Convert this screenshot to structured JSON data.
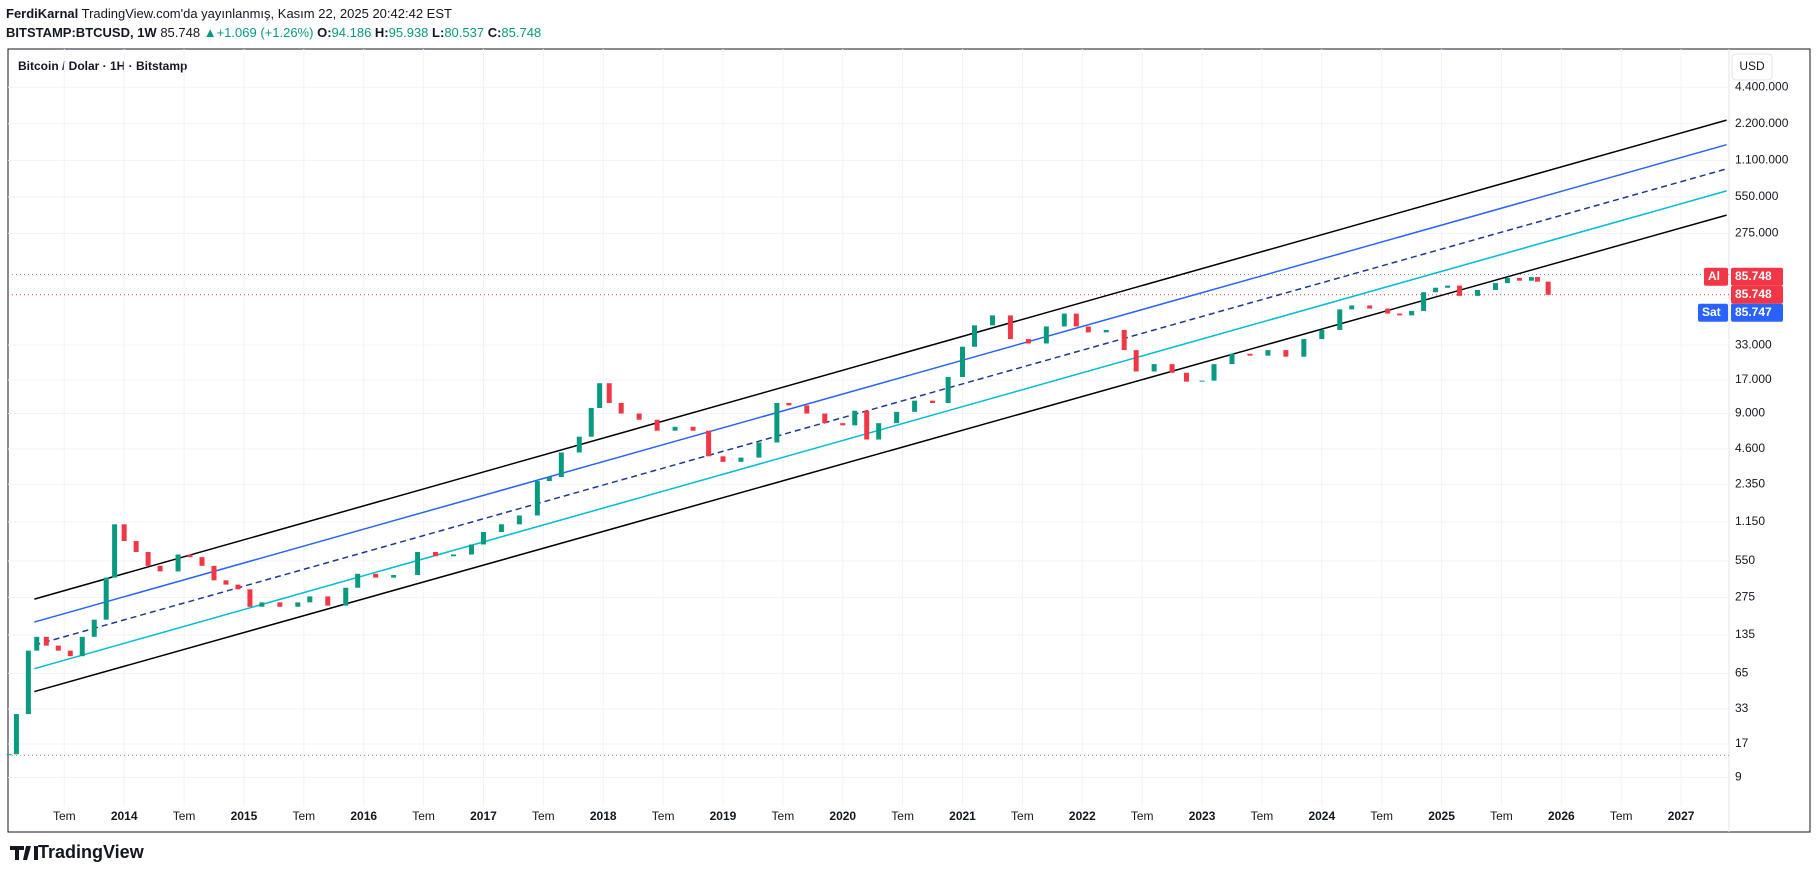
{
  "header": {
    "author": "FerdiKarnal",
    "published": "TradingView.com'da yayınlanmış, Kasım 22, 2025 20:42:42 EST",
    "symbol": "BITSTAMP:BTCUSD, 1W",
    "price": "85.748",
    "arrow": "▲",
    "change": "+1.069 (+1.26%)",
    "o_label": "O:",
    "o": "94.186",
    "h_label": "H:",
    "h": "95.938",
    "l_label": "L:",
    "l": "80.537",
    "c_label": "C:",
    "c": "85.748"
  },
  "footer": {
    "brand": "TradingView"
  },
  "chart_data": {
    "type": "candlestick",
    "title": "Bitcoin / Dolar · 1H · Bitstamp",
    "currency": "USD",
    "log_scale": true,
    "grid": true,
    "up_color": "#089981",
    "down_color": "#f23645",
    "xlim": [
      2013.03,
      2027.4
    ],
    "xticks": [
      {
        "value": 2013.5,
        "label": "Tem"
      },
      2014,
      {
        "value": 2014.5,
        "label": "Tem"
      },
      2015,
      {
        "value": 2015.5,
        "label": "Tem"
      },
      2016,
      {
        "value": 2016.5,
        "label": "Tem"
      },
      2017,
      {
        "value": 2017.5,
        "label": "Tem"
      },
      2018,
      {
        "value": 2018.5,
        "label": "Tem"
      },
      2019,
      {
        "value": 2019.5,
        "label": "Tem"
      },
      2020,
      {
        "value": 2020.5,
        "label": "Tem"
      },
      2021,
      {
        "value": 2021.5,
        "label": "Tem"
      },
      2022,
      {
        "value": 2022.5,
        "label": "Tem"
      },
      2023,
      {
        "value": 2023.5,
        "label": "Tem"
      },
      2024,
      {
        "value": 2024.5,
        "label": "Tem"
      },
      2025,
      {
        "value": 2025.5,
        "label": "Tem"
      },
      2026,
      {
        "value": 2026.5,
        "label": "Tem"
      },
      2027
    ],
    "ylim": [
      3.2,
      9100000
    ],
    "yticks": [
      {
        "value": 4400000,
        "label": "4.400.000"
      },
      {
        "value": 2200000,
        "label": "2.200.000"
      },
      {
        "value": 1100000,
        "label": "1.100.000"
      },
      {
        "value": 550000,
        "label": "550.000"
      },
      {
        "value": 275000,
        "label": "275.000"
      },
      {
        "value": 33000,
        "label": "33.000"
      },
      {
        "value": 17000,
        "label": "17.000"
      },
      {
        "value": 9000,
        "label": "9.000"
      },
      {
        "value": 4600,
        "label": "4.600"
      },
      {
        "value": 2350,
        "label": "2.350"
      },
      {
        "value": 1150,
        "label": "1.150"
      },
      550,
      275,
      135,
      65,
      33,
      17,
      9
    ],
    "x": [
      2013.04,
      2013.1,
      2013.2,
      2013.27,
      2013.35,
      2013.45,
      2013.55,
      2013.65,
      2013.75,
      2013.85,
      2013.92,
      2014.0,
      2014.1,
      2014.2,
      2014.3,
      2014.45,
      2014.55,
      2014.65,
      2014.75,
      2014.85,
      2014.95,
      2015.05,
      2015.15,
      2015.3,
      2015.45,
      2015.55,
      2015.7,
      2015.85,
      2015.95,
      2016.1,
      2016.25,
      2016.45,
      2016.6,
      2016.75,
      2016.9,
      2017.0,
      2017.15,
      2017.3,
      2017.45,
      2017.55,
      2017.65,
      2017.8,
      2017.9,
      2017.97,
      2018.05,
      2018.15,
      2018.3,
      2018.45,
      2018.6,
      2018.75,
      2018.88,
      2019.0,
      2019.15,
      2019.3,
      2019.45,
      2019.55,
      2019.7,
      2019.85,
      2020.0,
      2020.1,
      2020.2,
      2020.3,
      2020.45,
      2020.6,
      2020.75,
      2020.88,
      2021.0,
      2021.1,
      2021.25,
      2021.4,
      2021.55,
      2021.7,
      2021.85,
      2021.95,
      2022.05,
      2022.2,
      2022.35,
      2022.45,
      2022.6,
      2022.75,
      2022.87,
      2023.0,
      2023.1,
      2023.25,
      2023.4,
      2023.55,
      2023.7,
      2023.85,
      2024.0,
      2024.15,
      2024.25,
      2024.4,
      2024.55,
      2024.65,
      2024.75,
      2024.85,
      2024.95,
      2025.05,
      2025.15,
      2025.3,
      2025.45,
      2025.55,
      2025.65,
      2025.75,
      2025.8,
      2025.89
    ],
    "values": [
      14,
      30,
      100,
      130,
      110,
      100,
      90,
      130,
      180,
      400,
      1100,
      800,
      650,
      500,
      450,
      620,
      590,
      500,
      380,
      350,
      320,
      230,
      250,
      230,
      250,
      280,
      235,
      330,
      430,
      400,
      420,
      650,
      600,
      620,
      750,
      950,
      1100,
      1300,
      2500,
      2700,
      4300,
      5800,
      10000,
      16000,
      11000,
      9000,
      8000,
      6500,
      7000,
      6500,
      4000,
      3600,
      3900,
      5200,
      11000,
      10500,
      9000,
      7500,
      7200,
      9500,
      5500,
      7500,
      9300,
      11500,
      11000,
      18000,
      32000,
      48000,
      58000,
      37000,
      34000,
      47000,
      60000,
      47000,
      42000,
      44000,
      30000,
      20000,
      23000,
      19500,
      16500,
      16800,
      23000,
      28000,
      27000,
      30000,
      26500,
      37000,
      44000,
      65000,
      70000,
      66000,
      60000,
      58000,
      63000,
      90000,
      98000,
      102000,
      84000,
      94000,
      107000,
      118000,
      112000,
      120000,
      110000,
      85748
    ],
    "channel": [
      {
        "x": [
          2013.25,
          2027.38
        ],
        "y": [
          266,
          2360000
        ],
        "color": "#000000",
        "dashed": false
      },
      {
        "x": [
          2013.25,
          2027.38
        ],
        "y": [
          172,
          1480000
        ],
        "color": "#2962ff",
        "dashed": false
      },
      {
        "x": [
          2013.25,
          2027.38
        ],
        "y": [
          111,
          936000
        ],
        "color": "#1e3a8a",
        "dashed": true
      },
      {
        "x": [
          2013.25,
          2027.38
        ],
        "y": [
          71,
          616000
        ],
        "color": "#00bcd4",
        "dashed": false
      },
      {
        "x": [
          2013.25,
          2027.38
        ],
        "y": [
          46,
          389000
        ],
        "color": "#000000",
        "dashed": false
      }
    ],
    "hlines": [
      {
        "value": 126000,
        "color": "#9598a1"
      },
      {
        "value": 85748,
        "color": "#f23645"
      },
      {
        "value": 13.7,
        "color": "#9598a1"
      }
    ],
    "price_labels": {
      "buy_label": "Al",
      "buy": "85.748",
      "last": "85.748",
      "sell_label": "Sat",
      "sell": "85.747"
    }
  }
}
